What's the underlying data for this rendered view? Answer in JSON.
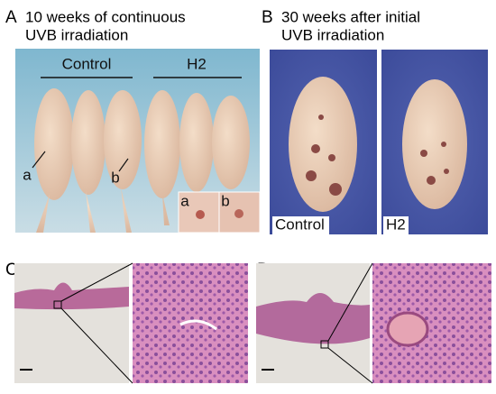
{
  "panels": [
    {
      "label": "A",
      "title": [
        "10 weeks of continuous",
        "UVB irradiation"
      ],
      "groups": [
        "Control",
        "H2"
      ],
      "markers": [
        "a",
        "b"
      ],
      "inset_labels": [
        "a",
        "b"
      ]
    },
    {
      "label": "B",
      "title": [
        "30 weeks after initial",
        "UVB irradiation"
      ],
      "photo_labels": [
        "Control",
        "H2"
      ]
    },
    {
      "label": "C"
    },
    {
      "label": "D"
    }
  ]
}
